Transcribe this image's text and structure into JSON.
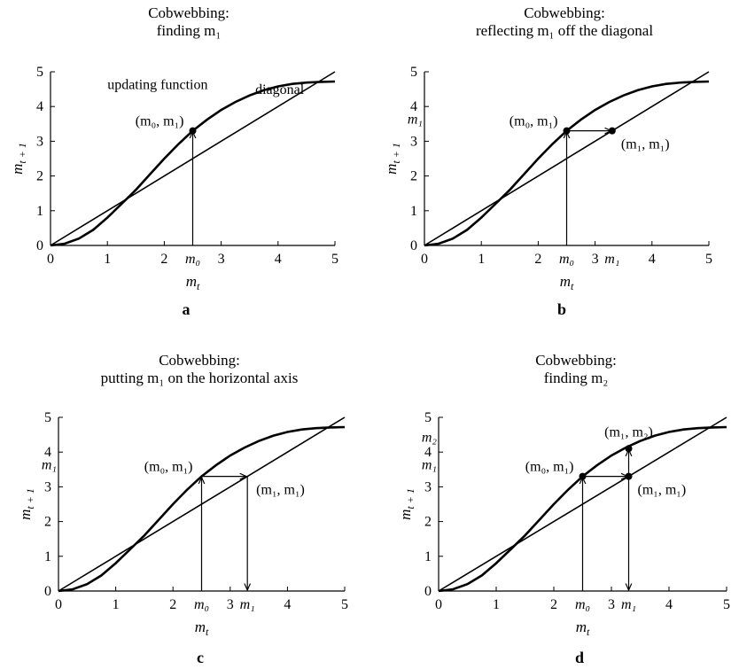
{
  "chart_data": [
    {
      "panel": "a",
      "type": "line",
      "title": [
        "Cobwebbing:",
        "finding m₁"
      ],
      "xlabel": "m_t",
      "ylabel": "m_{t+1}",
      "xlim": [
        0,
        5
      ],
      "ylim": [
        0,
        5
      ],
      "xticks": [
        "0",
        "1",
        "2",
        "3",
        "4",
        "5"
      ],
      "yticks": [
        "0",
        "1",
        "2",
        "3",
        "4",
        "5"
      ],
      "m0": 2.5,
      "m1": 3.3,
      "m2": 4.1,
      "extra_xlabels": [
        "m₀"
      ],
      "extra_ylabels": [],
      "series": [
        {
          "x": [
            0,
            0.25,
            0.5,
            0.75,
            1,
            1.25,
            1.5,
            1.75,
            2,
            2.25,
            2.5,
            2.75,
            3,
            3.25,
            3.5,
            3.75,
            4,
            4.25,
            4.5,
            4.75,
            5
          ],
          "y": [
            0,
            0.05,
            0.2,
            0.45,
            0.8,
            1.2,
            1.6,
            2.05,
            2.5,
            2.92,
            3.3,
            3.62,
            3.9,
            4.13,
            4.32,
            4.47,
            4.58,
            4.65,
            4.69,
            4.71,
            4.72
          ]
        },
        {
          "x": [
            0,
            5
          ],
          "y": [
            0,
            5
          ]
        }
      ],
      "steps": [
        "up"
      ],
      "points": [
        "m0m1"
      ],
      "annotations": [
        "updating function",
        "diagonal",
        "(m₀, m₁)"
      ]
    },
    {
      "panel": "b",
      "type": "line",
      "title": [
        "Cobwebbing:",
        "reflecting m₁ off the diagonal"
      ],
      "xlabel": "m_t",
      "ylabel": "m_{t+1}",
      "xlim": [
        0,
        5
      ],
      "ylim": [
        0,
        5
      ],
      "xticks": [
        "0",
        "1",
        "2",
        "3",
        "4",
        "5"
      ],
      "yticks": [
        "0",
        "1",
        "2",
        "3",
        "4",
        "5"
      ],
      "m0": 2.5,
      "m1": 3.3,
      "m2": 4.1,
      "extra_xlabels": [
        "m₀",
        "m₁"
      ],
      "extra_ylabels": [
        "m₁"
      ],
      "series": [
        {
          "x": [
            0,
            0.25,
            0.5,
            0.75,
            1,
            1.25,
            1.5,
            1.75,
            2,
            2.25,
            2.5,
            2.75,
            3,
            3.25,
            3.5,
            3.75,
            4,
            4.25,
            4.5,
            4.75,
            5
          ],
          "y": [
            0,
            0.05,
            0.2,
            0.45,
            0.8,
            1.2,
            1.6,
            2.05,
            2.5,
            2.92,
            3.3,
            3.62,
            3.9,
            4.13,
            4.32,
            4.47,
            4.58,
            4.65,
            4.69,
            4.71,
            4.72
          ]
        },
        {
          "x": [
            0,
            5
          ],
          "y": [
            0,
            5
          ]
        }
      ],
      "steps": [
        "up",
        "right"
      ],
      "points": [
        "m0m1",
        "m1m1"
      ],
      "annotations": [
        "(m₀, m₁)",
        "(m₁, m₁)"
      ]
    },
    {
      "panel": "c",
      "type": "line",
      "title": [
        "Cobwebbing:",
        "putting m₁ on the horizontal axis"
      ],
      "xlabel": "m_t",
      "ylabel": "m_{t+1}",
      "xlim": [
        0,
        5
      ],
      "ylim": [
        0,
        5
      ],
      "xticks": [
        "0",
        "1",
        "2",
        "3",
        "4",
        "5"
      ],
      "yticks": [
        "0",
        "1",
        "2",
        "3",
        "4",
        "5"
      ],
      "m0": 2.5,
      "m1": 3.3,
      "m2": 4.1,
      "extra_xlabels": [
        "m₀",
        "m₁"
      ],
      "extra_ylabels": [
        "m₁"
      ],
      "series": [
        {
          "x": [
            0,
            0.25,
            0.5,
            0.75,
            1,
            1.25,
            1.5,
            1.75,
            2,
            2.25,
            2.5,
            2.75,
            3,
            3.25,
            3.5,
            3.75,
            4,
            4.25,
            4.5,
            4.75,
            5
          ],
          "y": [
            0,
            0.05,
            0.2,
            0.45,
            0.8,
            1.2,
            1.6,
            2.05,
            2.5,
            2.92,
            3.3,
            3.62,
            3.9,
            4.13,
            4.32,
            4.47,
            4.58,
            4.65,
            4.69,
            4.71,
            4.72
          ]
        },
        {
          "x": [
            0,
            5
          ],
          "y": [
            0,
            5
          ]
        }
      ],
      "steps": [
        "up",
        "right",
        "down"
      ],
      "points": [],
      "annotations": [
        "(m₀, m₁)",
        "(m₁, m₁)"
      ]
    },
    {
      "panel": "d",
      "type": "line",
      "title": [
        "Cobwebbing:",
        "finding m₂"
      ],
      "xlabel": "m_t",
      "ylabel": "m_{t+1}",
      "xlim": [
        0,
        5
      ],
      "ylim": [
        0,
        5
      ],
      "xticks": [
        "0",
        "1",
        "2",
        "3",
        "4",
        "5"
      ],
      "yticks": [
        "0",
        "1",
        "2",
        "3",
        "4",
        "5"
      ],
      "m0": 2.5,
      "m1": 3.3,
      "m2": 4.1,
      "extra_xlabels": [
        "m₀",
        "m₁"
      ],
      "extra_ylabels": [
        "m₂",
        "m₁"
      ],
      "series": [
        {
          "x": [
            0,
            0.25,
            0.5,
            0.75,
            1,
            1.25,
            1.5,
            1.75,
            2,
            2.25,
            2.5,
            2.75,
            3,
            3.25,
            3.5,
            3.75,
            4,
            4.25,
            4.5,
            4.75,
            5
          ],
          "y": [
            0,
            0.05,
            0.2,
            0.45,
            0.8,
            1.2,
            1.6,
            2.05,
            2.5,
            2.92,
            3.3,
            3.62,
            3.9,
            4.13,
            4.32,
            4.47,
            4.58,
            4.65,
            4.69,
            4.71,
            4.72
          ]
        },
        {
          "x": [
            0,
            5
          ],
          "y": [
            0,
            5
          ]
        }
      ],
      "steps": [
        "up",
        "right",
        "down",
        "up2"
      ],
      "points": [
        "m0m1",
        "m1m1",
        "m1m2"
      ],
      "annotations": [
        "(m₀, m₁)",
        "(m₁, m₂)",
        "(m₁, m₁)"
      ]
    }
  ]
}
